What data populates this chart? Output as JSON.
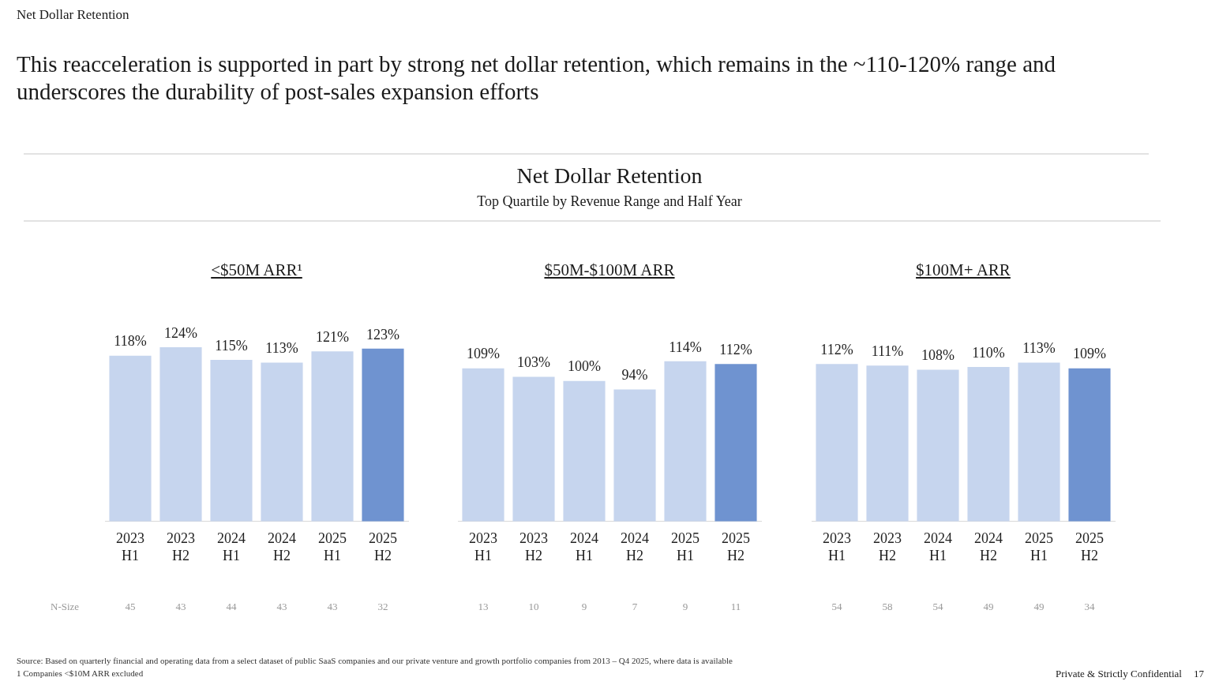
{
  "chart_data": [
    {
      "type": "other",
      "title": "Net Dollar Retention",
      "subtitle": "Top Quartile by Revenue Range and Half Year",
      "annotations": [
        "Net Dollar Retention",
        "This reacceleration is supported in part by strong net dollar retention, which remains in the ~110-120% range and underscores the durability of post-sales expansion efforts",
        "Source: Based on quarterly financial and operating data from a select dataset of public SaaS companies and our private venture and growth portfolio companies from 2013 – Q4 2025, where data is available",
        "1 Companies <$10M ARR excluded",
        "Private & Strictly Confidential",
        "17"
      ]
    },
    {
      "type": "bar",
      "title": "<$50M ARR¹",
      "categories": [
        "2023 H1",
        "2023 H2",
        "2024 H1",
        "2024 H2",
        "2025 H1",
        "2025 H2"
      ],
      "values": [
        118,
        124,
        115,
        113,
        121,
        123
      ],
      "colors": [
        "#c6d5ee",
        "#c6d5ee",
        "#c6d5ee",
        "#c6d5ee",
        "#c6d5ee",
        "#6f93d0"
      ],
      "value_labels": [
        "118%",
        "124%",
        "115%",
        "113%",
        "121%",
        "123%"
      ],
      "grid": false,
      "legend": false,
      "annotations": [
        "N-Size",
        "45",
        "43",
        "44",
        "43",
        "43",
        "32"
      ]
    },
    {
      "type": "bar",
      "title": "$50M-$100M ARR",
      "categories": [
        "2023 H1",
        "2023 H2",
        "2024 H1",
        "2024 H2",
        "2025 H1",
        "2025 H2"
      ],
      "values": [
        109,
        103,
        100,
        94,
        114,
        112
      ],
      "colors": [
        "#c6d5ee",
        "#c6d5ee",
        "#c6d5ee",
        "#c6d5ee",
        "#c6d5ee",
        "#6f93d0"
      ],
      "value_labels": [
        "109%",
        "103%",
        "100%",
        "94%",
        "114%",
        "112%"
      ],
      "grid": false,
      "legend": false,
      "annotations": [
        "13",
        "10",
        "9",
        "7",
        "9",
        "11"
      ]
    },
    {
      "type": "bar",
      "title": "$100M+ ARR",
      "categories": [
        "2023 H1",
        "2023 H2",
        "2024 H1",
        "2024 H2",
        "2025 H1",
        "2025 H2"
      ],
      "values": [
        112,
        111,
        108,
        110,
        113,
        109
      ],
      "colors": [
        "#c6d5ee",
        "#c6d5ee",
        "#c6d5ee",
        "#c6d5ee",
        "#c6d5ee",
        "#6f93d0"
      ],
      "value_labels": [
        "112%",
        "111%",
        "108%",
        "110%",
        "113%",
        "109%"
      ],
      "grid": false,
      "legend": false,
      "annotations": [
        "54",
        "58",
        "54",
        "49",
        "49",
        "34"
      ]
    }
  ]
}
